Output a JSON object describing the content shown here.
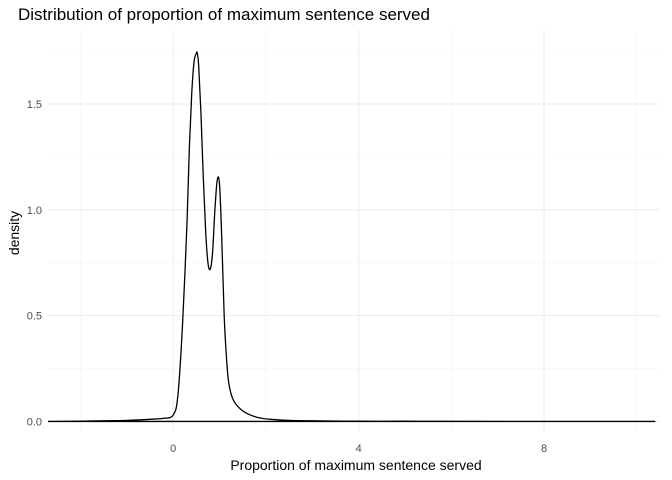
{
  "chart_data": {
    "type": "line",
    "title": "Distribution of proportion of maximum sentence served",
    "xlabel": "Proportion of maximum sentence served",
    "ylabel": "density",
    "xlim": [
      -2.7,
      10.5
    ],
    "ylim": [
      -0.05,
      1.85
    ],
    "x_ticks": [
      0,
      4,
      8
    ],
    "x_tick_labels": [
      "0",
      "4",
      "8"
    ],
    "y_ticks": [
      0.0,
      0.5,
      1.0,
      1.5
    ],
    "y_tick_labels": [
      "0.0",
      "0.5",
      "1.0",
      "1.5"
    ],
    "grid": true,
    "legend": "none",
    "line_color": "#000000",
    "series": [
      {
        "x": [
          -2.7,
          -2.0,
          -1.5,
          -1.0,
          -0.5,
          -0.2,
          0.0,
          0.1,
          0.2,
          0.3,
          0.35,
          0.4,
          0.45,
          0.5,
          0.52,
          0.55,
          0.6,
          0.65,
          0.7,
          0.75,
          0.8,
          0.85,
          0.9,
          0.95,
          1.0,
          1.05,
          1.1,
          1.15,
          1.2,
          1.3,
          1.5,
          1.8,
          2.1,
          2.5,
          3.0,
          4.0,
          5.0,
          6.0,
          8.0,
          10.4
        ],
        "y": [
          0.0,
          0.001,
          0.003,
          0.005,
          0.01,
          0.015,
          0.03,
          0.12,
          0.45,
          0.95,
          1.3,
          1.55,
          1.7,
          1.74,
          1.74,
          1.68,
          1.45,
          1.15,
          0.9,
          0.75,
          0.72,
          0.8,
          1.0,
          1.14,
          1.12,
          0.85,
          0.5,
          0.3,
          0.18,
          0.1,
          0.05,
          0.02,
          0.01,
          0.005,
          0.003,
          0.001,
          0.001,
          0.0005,
          0.0002,
          0.0
        ]
      }
    ]
  }
}
